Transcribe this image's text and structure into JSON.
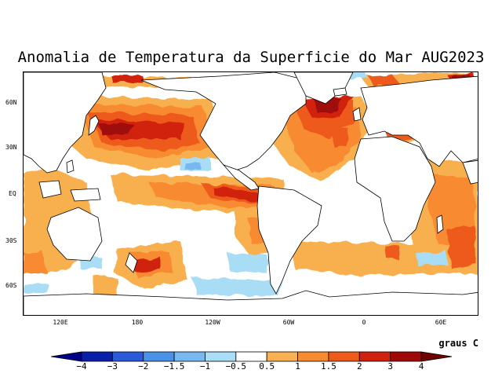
{
  "title": "Anomalia de Temperatura da Superficie do Mar AUG2023",
  "units": "graus C",
  "lat_labels": [
    "60N",
    "30N",
    "EQ",
    "30S",
    "60S"
  ],
  "lon_labels": [
    "120E",
    "180",
    "120W",
    "60W",
    "0",
    "60E"
  ],
  "colorbar": {
    "labels": [
      "−4",
      "−3",
      "−2",
      "−1.5",
      "−1",
      "−0.5",
      "0.5",
      "1",
      "1.5",
      "2",
      "3",
      "4"
    ],
    "colors": [
      "#0a1fa8",
      "#2a5ad8",
      "#4a92e8",
      "#78b8f0",
      "#a8ddf5",
      "#ffffff",
      "#f8b050",
      "#f88a30",
      "#ee5a1a",
      "#d02010",
      "#a00808"
    ]
  },
  "chart_data": {
    "type": "heatmap",
    "title": "Anomalia de Temperatura da Superficie do Mar AUG2023",
    "variable": "sea surface temperature anomaly",
    "units": "graus C",
    "period": "AUG2023",
    "contour_levels": [
      -4,
      -3,
      -2,
      -1.5,
      -1,
      -0.5,
      0.5,
      1,
      1.5,
      2,
      3,
      4
    ],
    "y_ticks": [
      "60N",
      "30N",
      "EQ",
      "30S",
      "60S"
    ],
    "x_ticks": [
      "120E",
      "180",
      "120W",
      "60W",
      "0",
      "60E"
    ]
  }
}
